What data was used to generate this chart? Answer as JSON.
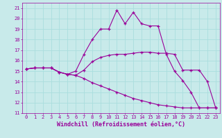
{
  "xlabel": "Windchill (Refroidissement éolien,°C)",
  "bg_color": "#c8eaea",
  "line_color": "#990099",
  "grid_color": "#aadddd",
  "xlim": [
    -0.5,
    23.5
  ],
  "ylim": [
    11,
    21.5
  ],
  "xticks": [
    0,
    1,
    2,
    3,
    4,
    5,
    6,
    7,
    8,
    9,
    10,
    11,
    12,
    13,
    14,
    15,
    16,
    17,
    18,
    19,
    20,
    21,
    22,
    23
  ],
  "yticks": [
    11,
    12,
    13,
    14,
    15,
    16,
    17,
    18,
    19,
    20,
    21
  ],
  "line1_x": [
    0,
    1,
    2,
    3,
    4,
    5,
    6,
    7,
    8,
    9,
    10,
    11,
    12,
    13,
    14,
    15,
    16,
    17,
    18,
    19,
    20,
    21,
    22,
    23
  ],
  "line1_y": [
    15.2,
    15.3,
    15.3,
    15.3,
    14.9,
    14.7,
    14.6,
    15.1,
    15.9,
    16.3,
    16.5,
    16.6,
    16.6,
    16.7,
    16.8,
    16.8,
    16.7,
    16.7,
    16.6,
    15.1,
    15.1,
    15.1,
    14.0,
    11.5
  ],
  "line2_x": [
    0,
    1,
    2,
    3,
    4,
    5,
    6,
    7,
    8,
    9,
    10,
    11,
    12,
    13,
    14,
    15,
    16,
    17,
    18,
    19,
    20,
    21,
    22,
    23
  ],
  "line2_y": [
    15.2,
    15.3,
    15.3,
    15.3,
    14.9,
    14.7,
    15.0,
    16.6,
    18.0,
    19.0,
    19.0,
    20.8,
    19.5,
    20.6,
    19.5,
    19.3,
    19.3,
    16.6,
    15.0,
    14.1,
    13.0,
    11.5,
    11.5,
    11.5
  ],
  "line3_x": [
    0,
    1,
    2,
    3,
    4,
    5,
    6,
    7,
    8,
    9,
    10,
    11,
    12,
    13,
    14,
    15,
    16,
    17,
    18,
    19,
    20,
    21,
    22,
    23
  ],
  "line3_y": [
    15.2,
    15.3,
    15.3,
    15.3,
    14.9,
    14.7,
    14.6,
    14.3,
    13.9,
    13.6,
    13.3,
    13.0,
    12.7,
    12.4,
    12.2,
    12.0,
    11.8,
    11.7,
    11.6,
    11.5,
    11.5,
    11.5,
    11.5,
    11.5
  ],
  "marker": "+",
  "markersize": 3.5,
  "linewidth": 0.8,
  "tick_fontsize": 5.0,
  "xlabel_fontsize": 6.0
}
